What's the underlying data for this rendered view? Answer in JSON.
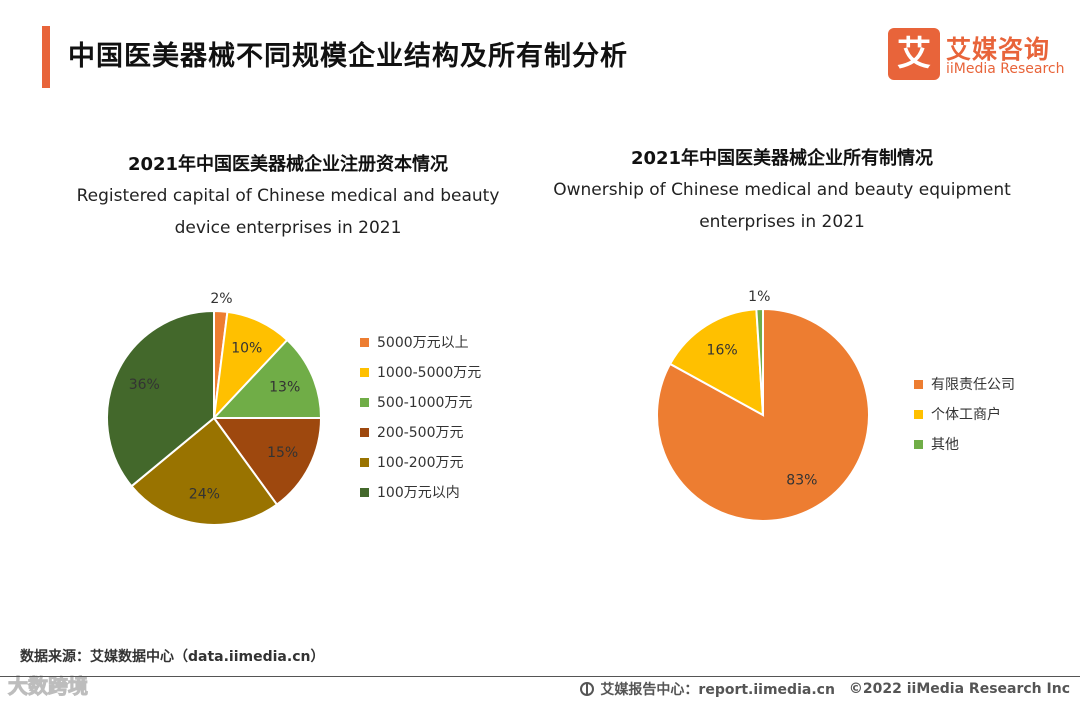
{
  "header": {
    "title": "中国医美器械不同规模企业结构及所有制分析",
    "accent_color": "#e8643a"
  },
  "logo": {
    "mark": "艾",
    "cn": "艾媒咨询",
    "en": "iiMedia Research"
  },
  "chart_data": [
    {
      "type": "pie",
      "title": "2021年中国医美器械企业注册资本情况",
      "subtitle": "Registered capital of Chinese medical and beauty device enterprises in 2021",
      "categories": [
        "5000万元以上",
        "1000-5000万元",
        "500-1000万元",
        "200-500万元",
        "100-200万元",
        "100万元以内"
      ],
      "values": [
        2,
        10,
        13,
        15,
        24,
        36
      ],
      "labels": [
        "2%",
        "10%",
        "13%",
        "15%",
        "24%",
        "36%"
      ],
      "colors": [
        "#ed7d31",
        "#ffc000",
        "#70ad47",
        "#9e480e",
        "#997300",
        "#43682b"
      ],
      "legend_position": "right"
    },
    {
      "type": "pie",
      "title": "2021年中国医美器械企业所有制情况",
      "subtitle": "Ownership of Chinese medical and beauty equipment enterprises in 2021",
      "categories": [
        "有限责任公司",
        "个体工商户",
        "其他"
      ],
      "values": [
        83,
        16,
        1
      ],
      "labels": [
        "83%",
        "16%",
        "1%"
      ],
      "colors": [
        "#ed7d31",
        "#ffc000",
        "#70ad47"
      ],
      "legend_position": "right"
    }
  ],
  "source": "数据来源：艾媒数据中心（data.iimedia.cn）",
  "watermark": "大数跨境",
  "footer": {
    "report": "艾媒报告中心：report.iimedia.cn",
    "copyright": "©2022  iiMedia Research  Inc"
  }
}
